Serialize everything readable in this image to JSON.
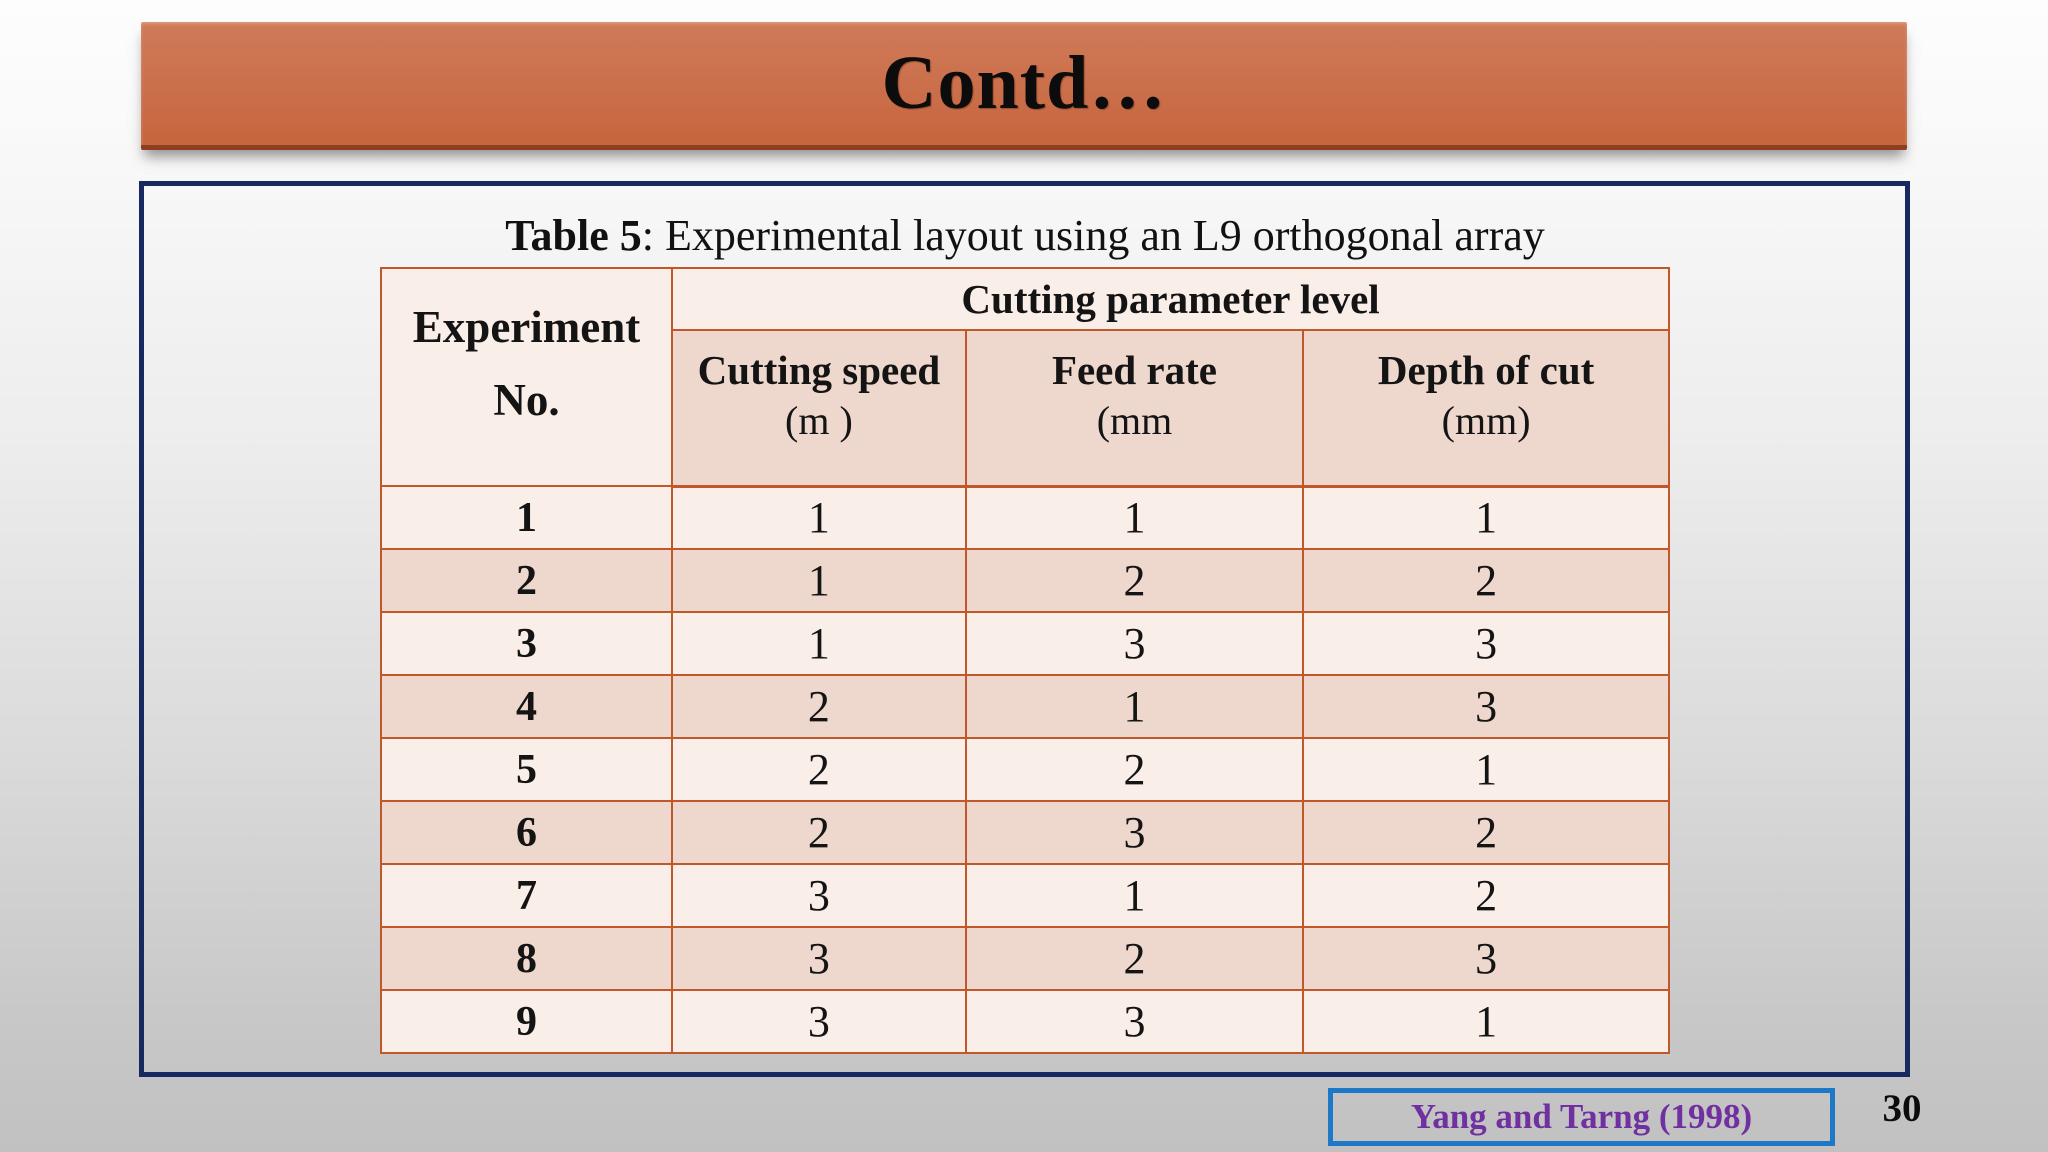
{
  "slide": {
    "title": "Contd…",
    "page_number": "30",
    "citation": "Yang and Tarng (1998)"
  },
  "table": {
    "caption_label": "Table 5",
    "caption_text": ": Experimental layout using an L9 orthogonal array",
    "corner_header": {
      "line1": "Experiment",
      "line2": "No."
    },
    "group_header": "Cutting parameter level",
    "columns": [
      {
        "name": "Cutting speed",
        "unit": "(m )"
      },
      {
        "name": "Feed rate",
        "unit": "(mm"
      },
      {
        "name": "Depth of cut",
        "unit": "(mm)"
      }
    ],
    "rows": [
      {
        "no": "1",
        "values": [
          "1",
          "1",
          "1"
        ]
      },
      {
        "no": "2",
        "values": [
          "1",
          "2",
          "2"
        ]
      },
      {
        "no": "3",
        "values": [
          "1",
          "3",
          "3"
        ]
      },
      {
        "no": "4",
        "values": [
          "2",
          "1",
          "3"
        ]
      },
      {
        "no": "5",
        "values": [
          "2",
          "2",
          "1"
        ]
      },
      {
        "no": "6",
        "values": [
          "2",
          "3",
          "2"
        ]
      },
      {
        "no": "7",
        "values": [
          "3",
          "1",
          "2"
        ]
      },
      {
        "no": "8",
        "values": [
          "3",
          "2",
          "3"
        ]
      },
      {
        "no": "9",
        "values": [
          "3",
          "3",
          "1"
        ]
      }
    ]
  },
  "colors": {
    "banner-top": "#d07a58",
    "banner-mid": "#cb6f4b",
    "banner-bottom": "#c5653d",
    "navy": "#17295e",
    "table-border": "#c2582a",
    "row-light": "#faeee9",
    "row-dark": "#eed7cc",
    "citation-border": "#1e78c8",
    "citation-text": "#7030a0"
  }
}
